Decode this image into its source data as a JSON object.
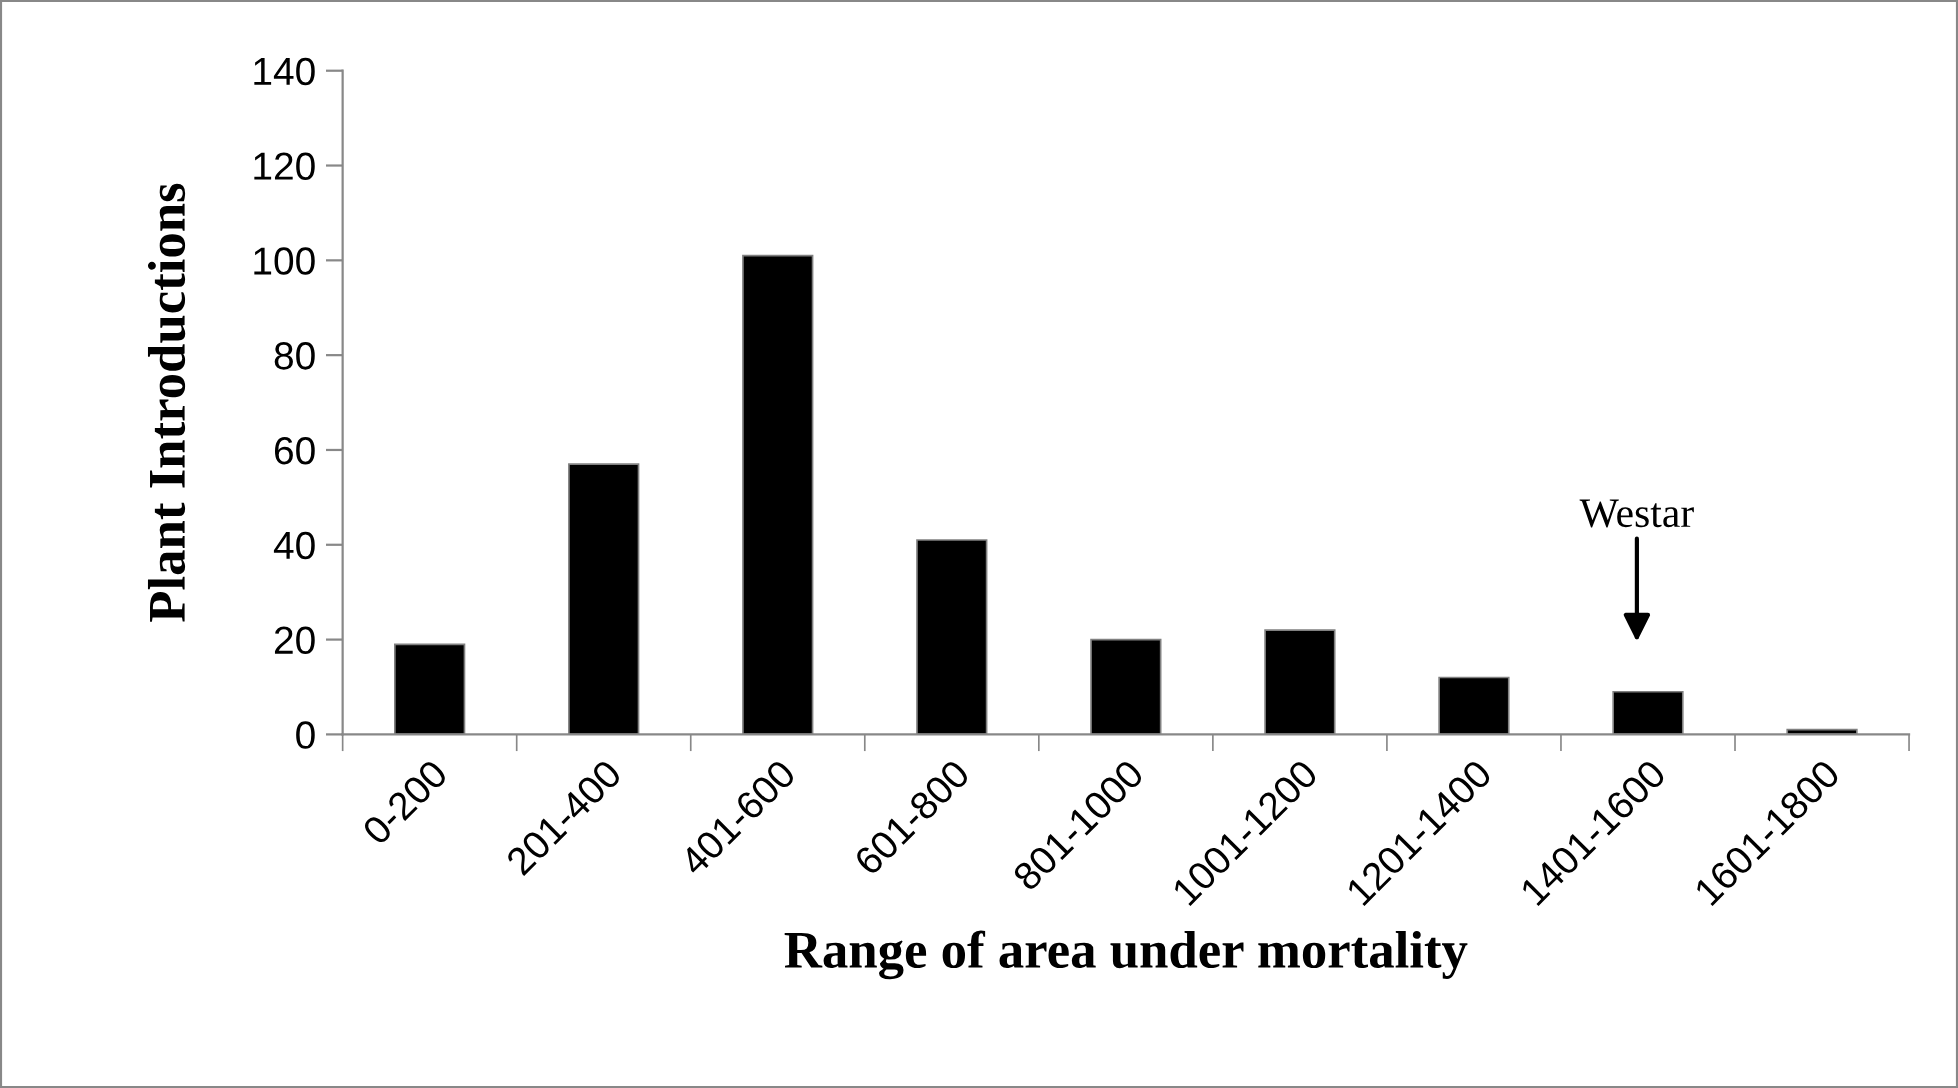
{
  "chart_data": {
    "type": "bar",
    "xlabel": "Range of area under mortality",
    "ylabel": "Plant Introductions",
    "categories": [
      "0-200",
      "201-400",
      "401-600",
      "601-800",
      "801-1000",
      "1001-1200",
      "1201-1400",
      "1401-1600",
      "1601-1800"
    ],
    "values": [
      19,
      57,
      101,
      41,
      20,
      22,
      12,
      9,
      1
    ],
    "color": "#000000",
    "ylim": [
      0,
      140
    ],
    "yticks": [
      0,
      20,
      40,
      60,
      80,
      100,
      120,
      140
    ],
    "grid": false,
    "legend": false,
    "annotations": [
      "Westar"
    ]
  }
}
